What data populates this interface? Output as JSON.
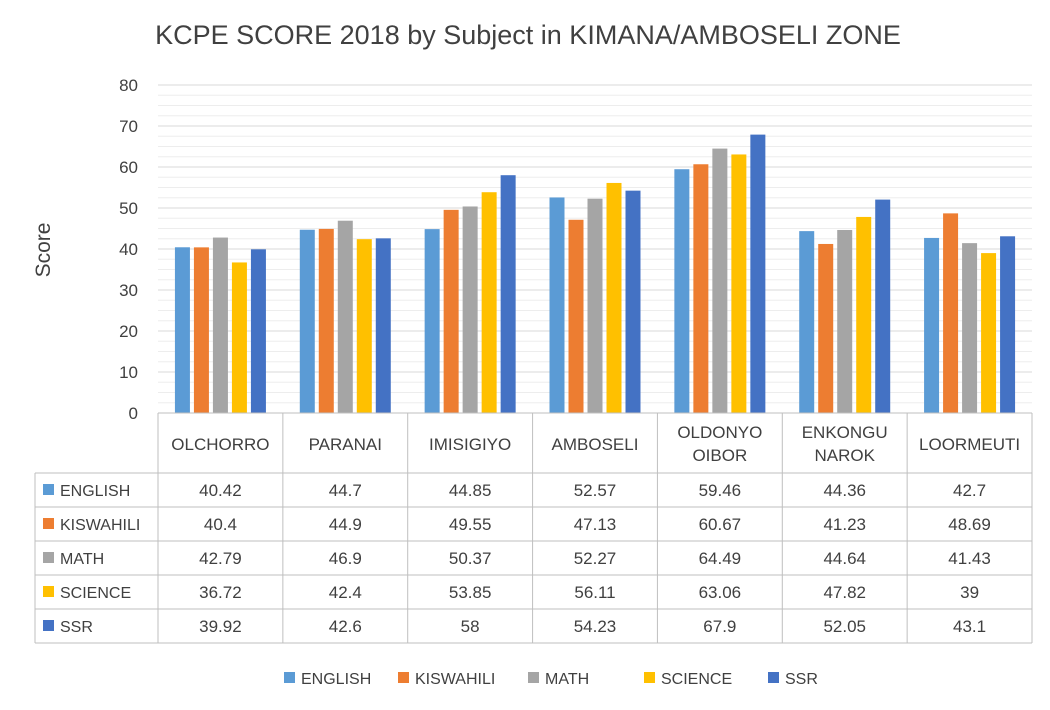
{
  "chart_data": {
    "type": "bar",
    "title": "KCPE SCORE 2018 by Subject in KIMANA/AMBOSELI ZONE",
    "xlabel": "",
    "ylabel": "Score",
    "ylim": [
      0,
      80
    ],
    "yticks": [
      0,
      10,
      20,
      30,
      40,
      50,
      60,
      70,
      80
    ],
    "grid": true,
    "legend": "bottom",
    "data_table": true,
    "categories": [
      [
        "OLCHORRO"
      ],
      [
        "PARANAI"
      ],
      [
        "IMISIGIYO"
      ],
      [
        "AMBOSELI"
      ],
      [
        "OLDONYO",
        "OIBOR"
      ],
      [
        "ENKONGU",
        "NAROK"
      ],
      [
        "LOORMEUTI"
      ]
    ],
    "series": [
      {
        "name": "ENGLISH",
        "color": "#5B9BD5",
        "values": [
          40.42,
          44.7,
          44.85,
          52.57,
          59.46,
          44.36,
          42.7
        ],
        "labels": [
          "40.42",
          "44.7",
          "44.85",
          "52.57",
          "59.46",
          "44.36",
          "42.7"
        ]
      },
      {
        "name": "KISWAHILI",
        "color": "#ED7D31",
        "values": [
          40.4,
          44.9,
          49.55,
          47.13,
          60.67,
          41.23,
          48.69
        ],
        "labels": [
          "40.4",
          "44.9",
          "49.55",
          "47.13",
          "60.67",
          "41.23",
          "48.69"
        ]
      },
      {
        "name": "MATH",
        "color": "#A5A5A5",
        "values": [
          42.79,
          46.9,
          50.37,
          52.27,
          64.49,
          44.64,
          41.43
        ],
        "labels": [
          "42.79",
          "46.9",
          "50.37",
          "52.27",
          "64.49",
          "44.64",
          "41.43"
        ]
      },
      {
        "name": "SCIENCE",
        "color": "#FFC000",
        "values": [
          36.72,
          42.4,
          53.85,
          56.11,
          63.06,
          47.82,
          39
        ],
        "labels": [
          "36.72",
          "42.4",
          "53.85",
          "56.11",
          "63.06",
          "47.82",
          "39"
        ]
      },
      {
        "name": "SSR",
        "color": "#4472C4",
        "values": [
          39.92,
          42.6,
          58,
          54.23,
          67.9,
          52.05,
          43.1
        ],
        "labels": [
          "39.92",
          "42.6",
          "58",
          "54.23",
          "67.9",
          "52.05",
          "43.1"
        ]
      }
    ]
  }
}
